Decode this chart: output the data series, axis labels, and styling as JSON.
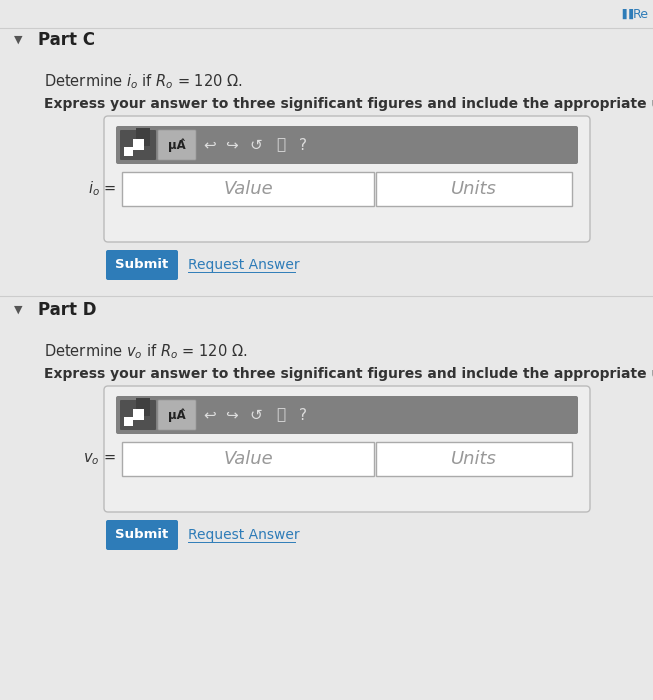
{
  "bg_color": "#e8e8e8",
  "teal_btn": "#2e7cb8",
  "part_c_label": "Part C",
  "part_d_label": "Part D",
  "desc_c": "Determine $i_o$ if $R_o$ = 120 Ω.",
  "desc_d": "Determine $v_o$ if $R_o$ = 120 Ω.",
  "instruction": "Express your answer to three significant figures and include the appropriate units.",
  "value_label": "Value",
  "units_label": "Units",
  "submit_label": "Submit",
  "request_label": "Request Answer",
  "label_c": "$i_o$ =",
  "label_d": "$v_o$ =",
  "re_text": "Re"
}
